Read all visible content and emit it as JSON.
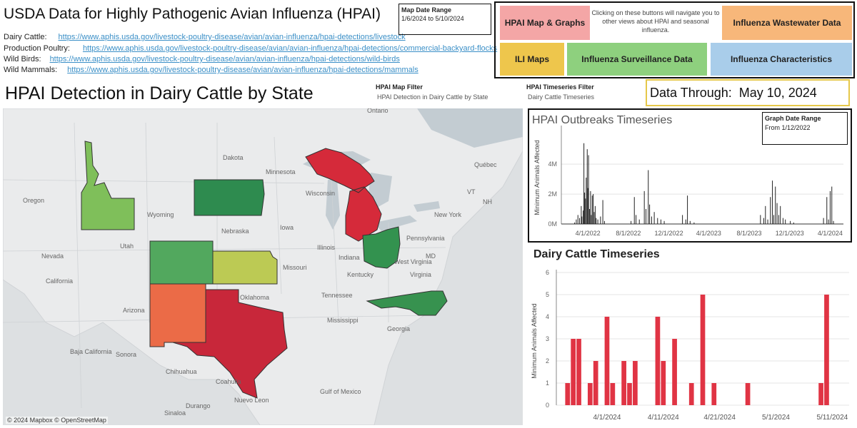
{
  "header": {
    "title": "USDA Data for Highly Pathogenic Avian Influenza (HPAI)",
    "links": [
      {
        "label": "Dairy Cattle:",
        "url": "https://www.aphis.usda.gov/livestock-poultry-disease/avian/avian-influenza/hpai-detections/livestock"
      },
      {
        "label": "Production Poultry:",
        "url": "https://www.aphis.usda.gov/livestock-poultry-disease/avian/avian-influenza/hpai-detections/commercial-backyard-flocks"
      },
      {
        "label": "Wild Birds:",
        "url": "https://www.aphis.usda.gov/livestock-poultry-disease/avian/avian-influenza/hpai-detections/wild-birds"
      },
      {
        "label": "Wild Mammals:",
        "url": "https://www.aphis.usda.gov/livestock-poultry-disease/avian/avian-influenza/hpai-detections/mammals"
      }
    ]
  },
  "map_date_range": {
    "label": "Map Date Range",
    "value": "1/6/2024 to 5/10/2024"
  },
  "nav": {
    "note": "Clicking on these buttons will navigate you to other views about HPAI and seasonal influenza.",
    "buttons": {
      "map_graphs": {
        "label": "HPAI Map & Graphs",
        "color": "#f4a6a6"
      },
      "wastewater": {
        "label": "Influenza Wastewater Data",
        "color": "#f7b77a"
      },
      "ili_maps": {
        "label": "ILI Maps",
        "color": "#eec64c"
      },
      "surveillance": {
        "label": "Influenza Surveillance Data",
        "color": "#8ed07e"
      },
      "characteristics": {
        "label": "Influenza Characteristics",
        "color": "#a9cdea"
      }
    }
  },
  "subtitle": "HPAI Detection in Dairy Cattle by State",
  "filters": {
    "map": {
      "label": "HPAI Map Filter",
      "value": "HPAI Detection in Dairy Cattle by State"
    },
    "timeseries": {
      "label": "HPAI Timeseries Filter",
      "value": "Dairy Cattle Timeseries"
    }
  },
  "data_through": {
    "label": "Data Through:",
    "value": "May 10, 2024"
  },
  "map": {
    "credit": "© 2024 Mapbox © OpenStreetMap",
    "place_labels": [
      "Ontario",
      "Dakota",
      "Minnesota",
      "Oregon",
      "Wisconsin",
      "Wyoming",
      "Iowa",
      "Nebraska",
      "Illinois",
      "Indiana",
      "Nevada",
      "Utah",
      "Pennsylvania",
      "New York",
      "MD",
      "West Virginia",
      "Virginia",
      "Missouri",
      "Kentucky",
      "California",
      "Oklahoma",
      "Tennessee",
      "Arizona",
      "Mississippi",
      "Georgia",
      "Chihuahua",
      "Nuevo Leon",
      "Sinaloa",
      "Durango",
      "Coahuila",
      "Sonora",
      "Gulf of Mexico",
      "Baja California",
      "Québec",
      "VT",
      "NH"
    ],
    "states": [
      {
        "name": "Idaho",
        "color": "#7fbf5a"
      },
      {
        "name": "South Dakota",
        "color": "#2e8b4f"
      },
      {
        "name": "Michigan",
        "color": "#d52a3a"
      },
      {
        "name": "Colorado",
        "color": "#52a85e"
      },
      {
        "name": "Kansas",
        "color": "#bcca54"
      },
      {
        "name": "Ohio",
        "color": "#33924f"
      },
      {
        "name": "New Mexico",
        "color": "#eb6b47"
      },
      {
        "name": "Texas",
        "color": "#c8273a"
      },
      {
        "name": "North Carolina",
        "color": "#37924f"
      }
    ]
  },
  "outbreaks_chart": {
    "title": "HPAI Outbreaks Timeseries",
    "graph_date_range": {
      "label": "Graph Date Range",
      "value": "From 1/12/2022"
    },
    "chart_data": {
      "type": "bar",
      "ylabel": "Minimum Animals Affected",
      "y_ticks": [
        "0M",
        "2M",
        "4M"
      ],
      "x_ticks": [
        "4/1/2022",
        "8/1/2022",
        "12/1/2022",
        "4/1/2023",
        "8/1/2023",
        "12/1/2023",
        "4/1/2024"
      ],
      "x_range_days": [
        0,
        850
      ],
      "ylim": [
        0,
        6.2
      ],
      "points": [
        [
          40,
          0.1
        ],
        [
          45,
          0.3
        ],
        [
          50,
          0.6
        ],
        [
          55,
          0.4
        ],
        [
          60,
          1.2
        ],
        [
          62,
          0.5
        ],
        [
          66,
          0.9
        ],
        [
          68,
          5.4
        ],
        [
          70,
          2.1
        ],
        [
          73,
          1.7
        ],
        [
          75,
          3.1
        ],
        [
          78,
          5.0
        ],
        [
          80,
          2.4
        ],
        [
          82,
          4.6
        ],
        [
          85,
          1.0
        ],
        [
          88,
          2.2
        ],
        [
          90,
          0.6
        ],
        [
          93,
          1.9
        ],
        [
          96,
          2.0
        ],
        [
          99,
          0.8
        ],
        [
          102,
          1.2
        ],
        [
          105,
          0.4
        ],
        [
          110,
          0.3
        ],
        [
          118,
          0.5
        ],
        [
          125,
          1.6
        ],
        [
          130,
          0.2
        ],
        [
          210,
          0.2
        ],
        [
          220,
          1.8
        ],
        [
          225,
          0.6
        ],
        [
          235,
          0.3
        ],
        [
          250,
          2.2
        ],
        [
          255,
          1.0
        ],
        [
          262,
          3.6
        ],
        [
          266,
          1.3
        ],
        [
          272,
          0.5
        ],
        [
          280,
          0.8
        ],
        [
          290,
          0.4
        ],
        [
          300,
          0.3
        ],
        [
          310,
          0.2
        ],
        [
          365,
          0.6
        ],
        [
          375,
          0.3
        ],
        [
          380,
          1.9
        ],
        [
          388,
          0.2
        ],
        [
          400,
          0.1
        ],
        [
          600,
          0.6
        ],
        [
          610,
          0.4
        ],
        [
          615,
          1.2
        ],
        [
          622,
          0.3
        ],
        [
          630,
          1.8
        ],
        [
          636,
          2.9
        ],
        [
          640,
          0.6
        ],
        [
          645,
          2.5
        ],
        [
          650,
          1.4
        ],
        [
          655,
          0.6
        ],
        [
          660,
          1.2
        ],
        [
          668,
          0.4
        ],
        [
          675,
          0.3
        ],
        [
          690,
          0.2
        ],
        [
          700,
          0.1
        ],
        [
          790,
          0.4
        ],
        [
          800,
          1.8
        ],
        [
          805,
          0.3
        ],
        [
          810,
          2.2
        ],
        [
          815,
          2.5
        ],
        [
          820,
          0.2
        ]
      ]
    }
  },
  "dairy_chart": {
    "title": "Dairy Cattle Timeseries",
    "chart_data": {
      "type": "bar",
      "ylabel": "Minimum Animals Affected",
      "ylim": [
        0,
        6
      ],
      "y_ticks": [
        0,
        1,
        2,
        3,
        4,
        5,
        6
      ],
      "x_ticks": [
        {
          "label": "4/1/2024",
          "day": 4
        },
        {
          "label": "4/11/2024",
          "day": 14
        },
        {
          "label": "4/21/2024",
          "day": 24
        },
        {
          "label": "5/1/2024",
          "day": 34
        },
        {
          "label": "5/11/2024",
          "day": 44
        }
      ],
      "x_range_days": [
        -5,
        47
      ],
      "bars": [
        {
          "day": -3,
          "value": 1
        },
        {
          "day": -2,
          "value": 3
        },
        {
          "day": -1,
          "value": 3
        },
        {
          "day": 1,
          "value": 1
        },
        {
          "day": 2,
          "value": 2
        },
        {
          "day": 4,
          "value": 4
        },
        {
          "day": 5,
          "value": 1
        },
        {
          "day": 7,
          "value": 2
        },
        {
          "day": 8,
          "value": 1
        },
        {
          "day": 9,
          "value": 2
        },
        {
          "day": 13,
          "value": 4
        },
        {
          "day": 14,
          "value": 2
        },
        {
          "day": 16,
          "value": 3
        },
        {
          "day": 19,
          "value": 1
        },
        {
          "day": 21,
          "value": 5
        },
        {
          "day": 23,
          "value": 1
        },
        {
          "day": 29,
          "value": 1
        },
        {
          "day": 42,
          "value": 1
        },
        {
          "day": 43,
          "value": 5
        }
      ]
    }
  }
}
